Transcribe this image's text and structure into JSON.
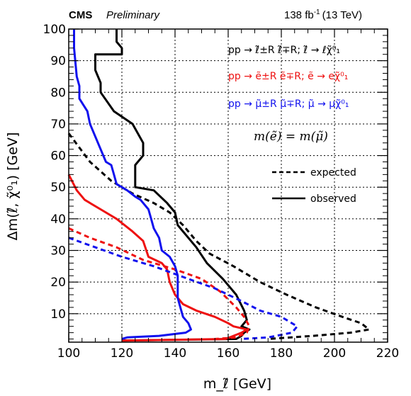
{
  "header": {
    "experiment": "CMS",
    "status": "Preliminary",
    "luminosity": "138 fb",
    "lumi_exp": "-1",
    "energy": "(13 TeV)"
  },
  "legend": {
    "process_all": "pp → ℓ̃±R ℓ̃∓R; ℓ̃ → ℓχ̃⁰₁",
    "process_e": "pp → ẽ±R ẽ∓R; ẽ → eχ̃⁰₁",
    "process_mu": "pp → μ̃±R μ̃∓R; μ̃ → μχ̃⁰₁",
    "mass_condition": "m(ẽ) = m(μ̃)",
    "expected_label": "expected",
    "observed_label": "observed"
  },
  "colors": {
    "combined": "#000000",
    "electron": "#ee1111",
    "muon": "#1111ee"
  },
  "chart_data": {
    "type": "line",
    "xlabel": "m_ℓ̃ [GeV]",
    "ylabel": "Δm(ℓ̃, χ̃⁰₁) [GeV]",
    "xlim": [
      100,
      220
    ],
    "ylim": [
      1,
      100
    ],
    "x_ticks": [
      100,
      120,
      140,
      160,
      180,
      200,
      220
    ],
    "y_ticks": [
      10,
      20,
      30,
      40,
      50,
      60,
      70,
      80,
      90,
      100
    ],
    "grid": true,
    "legend_position": "top-right",
    "series": [
      {
        "name": "observed",
        "color": "#000000",
        "style": "solid",
        "points": [
          [
            118,
            100
          ],
          [
            118,
            96
          ],
          [
            120,
            94
          ],
          [
            120,
            92
          ],
          [
            110,
            92
          ],
          [
            110,
            87
          ],
          [
            112,
            83
          ],
          [
            112,
            80
          ],
          [
            117,
            74
          ],
          [
            124,
            70
          ],
          [
            128,
            64
          ],
          [
            128,
            60
          ],
          [
            125,
            57
          ],
          [
            125,
            50
          ],
          [
            132,
            49
          ],
          [
            137,
            45
          ],
          [
            140,
            42
          ],
          [
            141,
            38
          ],
          [
            145,
            34
          ],
          [
            148,
            31
          ],
          [
            152,
            26
          ],
          [
            158,
            21
          ],
          [
            163,
            16
          ],
          [
            166,
            11
          ],
          [
            167,
            8
          ],
          [
            165,
            6
          ],
          [
            168,
            5
          ],
          [
            166,
            4
          ],
          [
            165,
            3
          ],
          [
            163,
            2
          ],
          [
            120,
            1.5
          ]
        ]
      },
      {
        "name": "expected",
        "color": "#000000",
        "style": "dashed",
        "points": [
          [
            100,
            67
          ],
          [
            108,
            58
          ],
          [
            116,
            52
          ],
          [
            124,
            48
          ],
          [
            132,
            45
          ],
          [
            138,
            42
          ],
          [
            143,
            38
          ],
          [
            148,
            33
          ],
          [
            153,
            29
          ],
          [
            162,
            25
          ],
          [
            172,
            20
          ],
          [
            182,
            16
          ],
          [
            193,
            12
          ],
          [
            203,
            9
          ],
          [
            210,
            7
          ],
          [
            213,
            5
          ],
          [
            206,
            4
          ],
          [
            192,
            3
          ],
          [
            175,
            2
          ]
        ]
      },
      {
        "name": "e_observed",
        "color": "#ee1111",
        "style": "solid",
        "points": [
          [
            100,
            54
          ],
          [
            103,
            49
          ],
          [
            106,
            46
          ],
          [
            112,
            43
          ],
          [
            118,
            40
          ],
          [
            124,
            36
          ],
          [
            128,
            33
          ],
          [
            130,
            28
          ],
          [
            135,
            26
          ],
          [
            137,
            24
          ],
          [
            138,
            20
          ],
          [
            140,
            16
          ],
          [
            143,
            13
          ],
          [
            148,
            11
          ],
          [
            155,
            9
          ],
          [
            160,
            7
          ],
          [
            162,
            6
          ],
          [
            167,
            5
          ],
          [
            165,
            4
          ],
          [
            162,
            3
          ],
          [
            159,
            2
          ],
          [
            120,
            1.5
          ]
        ]
      },
      {
        "name": "e_expected",
        "color": "#ee1111",
        "style": "dashed",
        "points": [
          [
            100,
            37
          ],
          [
            108,
            34
          ],
          [
            118,
            31
          ],
          [
            128,
            27
          ],
          [
            140,
            24
          ],
          [
            150,
            21
          ],
          [
            157,
            17
          ],
          [
            163,
            12
          ],
          [
            166,
            9
          ],
          [
            168,
            6
          ],
          [
            167,
            4
          ],
          [
            163,
            2.5
          ],
          [
            155,
            2
          ]
        ]
      },
      {
        "name": "mu_observed",
        "color": "#1111ee",
        "style": "solid",
        "points": [
          [
            102,
            100
          ],
          [
            102,
            94
          ],
          [
            103,
            85
          ],
          [
            104,
            82
          ],
          [
            104,
            78
          ],
          [
            107,
            74
          ],
          [
            108,
            70
          ],
          [
            110,
            66
          ],
          [
            112,
            62
          ],
          [
            114,
            58
          ],
          [
            116,
            57
          ],
          [
            117,
            54
          ],
          [
            118,
            51
          ],
          [
            122,
            49
          ],
          [
            125,
            47
          ],
          [
            127,
            46
          ],
          [
            130,
            43
          ],
          [
            131,
            40
          ],
          [
            132,
            37
          ],
          [
            134,
            34
          ],
          [
            135,
            30
          ],
          [
            138,
            28
          ],
          [
            140,
            25
          ],
          [
            141,
            22
          ],
          [
            141,
            15
          ],
          [
            142,
            12
          ],
          [
            143,
            9
          ],
          [
            145,
            7
          ],
          [
            146,
            5
          ],
          [
            144,
            4
          ],
          [
            134,
            3
          ],
          [
            122,
            2.5
          ],
          [
            120,
            2
          ]
        ]
      },
      {
        "name": "mu_expected",
        "color": "#1111ee",
        "style": "dashed",
        "points": [
          [
            100,
            34
          ],
          [
            110,
            31
          ],
          [
            120,
            28
          ],
          [
            132,
            25
          ],
          [
            145,
            21
          ],
          [
            155,
            18
          ],
          [
            165,
            14
          ],
          [
            172,
            11
          ],
          [
            180,
            9
          ],
          [
            186,
            6
          ],
          [
            184,
            4
          ],
          [
            175,
            2.5
          ],
          [
            165,
            2
          ]
        ]
      }
    ]
  }
}
